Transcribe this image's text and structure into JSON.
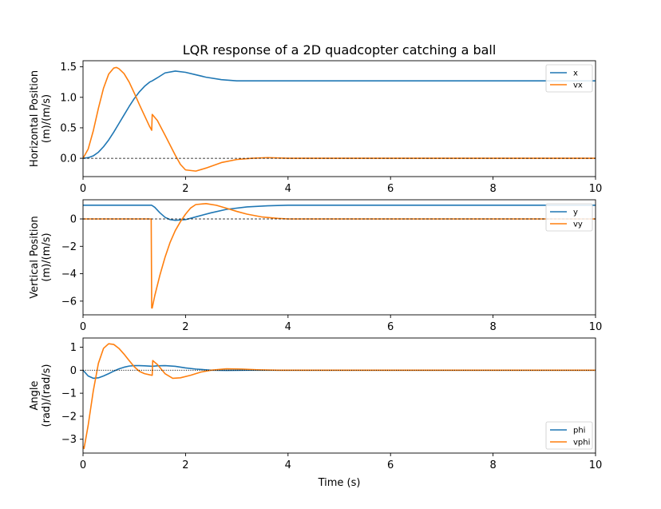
{
  "chart_data": {
    "title": "LQR response of a 2D quadcopter catching a ball",
    "xlabel": "Time (s)",
    "colors": {
      "series_1": "#1f77b4",
      "series_2": "#ff7f0e",
      "zero_line": "#000000"
    },
    "panels": [
      {
        "type": "line",
        "ylabel": [
          "Horizontal Position",
          "(m)/(m/s)"
        ],
        "xlim": [
          0,
          10
        ],
        "ylim": [
          -0.3,
          1.6
        ],
        "xticks": [
          0,
          2,
          4,
          6,
          8,
          10
        ],
        "yticks": [
          0.0,
          0.5,
          1.0,
          1.5
        ],
        "ytick_labels": [
          "0.0",
          "0.5",
          "1.0",
          "1.5"
        ],
        "legend_position": "top-right",
        "reference_line": 0,
        "series": [
          {
            "name": "x",
            "color": "#1f77b4",
            "x": [
              0,
              0.1,
              0.2,
              0.3,
              0.4,
              0.5,
              0.6,
              0.7,
              0.8,
              0.9,
              1.0,
              1.1,
              1.2,
              1.3,
              1.35,
              1.45,
              1.6,
              1.8,
              2.0,
              2.2,
              2.4,
              2.7,
              3.0,
              3.5,
              4,
              5,
              6,
              7,
              8,
              9,
              10
            ],
            "y": [
              0,
              0.01,
              0.04,
              0.1,
              0.19,
              0.3,
              0.43,
              0.57,
              0.71,
              0.85,
              0.98,
              1.09,
              1.18,
              1.25,
              1.27,
              1.32,
              1.4,
              1.43,
              1.41,
              1.37,
              1.33,
              1.29,
              1.27,
              1.27,
              1.27,
              1.27,
              1.27,
              1.27,
              1.27,
              1.27,
              1.27
            ]
          },
          {
            "name": "vx",
            "color": "#ff7f0e",
            "x": [
              0,
              0.1,
              0.2,
              0.3,
              0.4,
              0.5,
              0.6,
              0.65,
              0.7,
              0.8,
              0.9,
              1.0,
              1.1,
              1.2,
              1.3,
              1.34,
              1.35,
              1.45,
              1.6,
              1.8,
              1.9,
              2.0,
              2.2,
              2.4,
              2.7,
              3.0,
              3.3,
              3.6,
              4,
              5,
              6,
              7,
              8,
              9,
              10
            ],
            "y": [
              0,
              0.15,
              0.45,
              0.82,
              1.15,
              1.38,
              1.48,
              1.49,
              1.47,
              1.39,
              1.25,
              1.07,
              0.88,
              0.7,
              0.52,
              0.46,
              0.72,
              0.62,
              0.38,
              0.05,
              -0.1,
              -0.19,
              -0.21,
              -0.16,
              -0.07,
              -0.02,
              0.0,
              0.01,
              0.0,
              0,
              0,
              0,
              0,
              0,
              0
            ]
          }
        ]
      },
      {
        "type": "line",
        "ylabel": [
          "Vertical Position",
          "(m)/(m/s)"
        ],
        "xlim": [
          0,
          10
        ],
        "ylim": [
          -7,
          1.4
        ],
        "xticks": [
          0,
          2,
          4,
          6,
          8,
          10
        ],
        "yticks": [
          0,
          -2,
          -4,
          -6
        ],
        "ytick_labels": [
          "0",
          "−2",
          "−4",
          "−6"
        ],
        "legend_position": "top-right",
        "reference_line": 0,
        "series": [
          {
            "name": "y",
            "color": "#1f77b4",
            "x": [
              0,
              1.0,
              1.34,
              1.4,
              1.5,
              1.6,
              1.7,
              1.8,
              2.0,
              2.2,
              2.5,
              2.8,
              3.2,
              3.6,
              4,
              5,
              6,
              7,
              8,
              9,
              10
            ],
            "y": [
              1,
              1,
              1,
              0.85,
              0.45,
              0.12,
              -0.05,
              -0.1,
              -0.05,
              0.15,
              0.45,
              0.7,
              0.88,
              0.96,
              1,
              1,
              1,
              1,
              1,
              1,
              1
            ]
          },
          {
            "name": "vy",
            "color": "#ff7f0e",
            "x": [
              0,
              1.0,
              1.33,
              1.34,
              1.35,
              1.4,
              1.5,
              1.6,
              1.7,
              1.8,
              1.9,
              2.0,
              2.1,
              2.2,
              2.4,
              2.6,
              2.8,
              3.0,
              3.2,
              3.5,
              3.8,
              4,
              5,
              6,
              7,
              8,
              9,
              10
            ],
            "y": [
              0,
              0,
              0,
              -6.5,
              -6.5,
              -5.6,
              -4.1,
              -2.8,
              -1.7,
              -0.85,
              -0.2,
              0.35,
              0.8,
              1.05,
              1.12,
              1.0,
              0.78,
              0.55,
              0.35,
              0.14,
              0.04,
              0.0,
              0,
              0,
              0,
              0,
              0,
              0
            ]
          }
        ]
      },
      {
        "type": "line",
        "ylabel": [
          "Angle",
          "(rad)/(rad/s)"
        ],
        "xlim": [
          0,
          10
        ],
        "ylim": [
          -3.6,
          1.4
        ],
        "xticks": [
          0,
          2,
          4,
          6,
          8,
          10
        ],
        "yticks": [
          1,
          0,
          -1,
          -2,
          -3
        ],
        "ytick_labels": [
          "1",
          "0",
          "−1",
          "−2",
          "−3"
        ],
        "legend_position": "bottom-right",
        "reference_line": 0,
        "series": [
          {
            "name": "phi",
            "color": "#1f77b4",
            "x": [
              0,
              0.1,
              0.2,
              0.3,
              0.4,
              0.5,
              0.6,
              0.7,
              0.8,
              0.9,
              1.0,
              1.1,
              1.2,
              1.3,
              1.35,
              1.45,
              1.6,
              1.8,
              2.0,
              2.2,
              2.5,
              2.8,
              3.2,
              3.6,
              4,
              5,
              6,
              7,
              8,
              9,
              10
            ],
            "y": [
              0,
              -0.25,
              -0.35,
              -0.33,
              -0.25,
              -0.15,
              -0.04,
              0.06,
              0.13,
              0.18,
              0.2,
              0.2,
              0.19,
              0.18,
              0.17,
              0.19,
              0.2,
              0.17,
              0.1,
              0.05,
              0.0,
              -0.01,
              0.0,
              0.0,
              0,
              0,
              0,
              0,
              0,
              0,
              0
            ]
          },
          {
            "name": "vphi",
            "color": "#ff7f0e",
            "x": [
              0,
              0.02,
              0.1,
              0.2,
              0.3,
              0.4,
              0.5,
              0.6,
              0.7,
              0.8,
              0.9,
              1.0,
              1.1,
              1.2,
              1.3,
              1.35,
              1.36,
              1.45,
              1.6,
              1.75,
              1.9,
              2.1,
              2.3,
              2.5,
              2.8,
              3.1,
              3.4,
              3.8,
              4,
              5,
              6,
              7,
              8,
              9,
              10
            ],
            "y": [
              -3.3,
              -3.4,
              -2.4,
              -0.9,
              0.3,
              0.95,
              1.15,
              1.12,
              0.95,
              0.7,
              0.42,
              0.15,
              -0.05,
              -0.15,
              -0.2,
              -0.22,
              0.42,
              0.25,
              -0.15,
              -0.35,
              -0.33,
              -0.22,
              -0.08,
              0.0,
              0.06,
              0.05,
              0.02,
              0.0,
              0,
              0,
              0,
              0,
              0,
              0,
              0
            ]
          }
        ]
      }
    ]
  }
}
